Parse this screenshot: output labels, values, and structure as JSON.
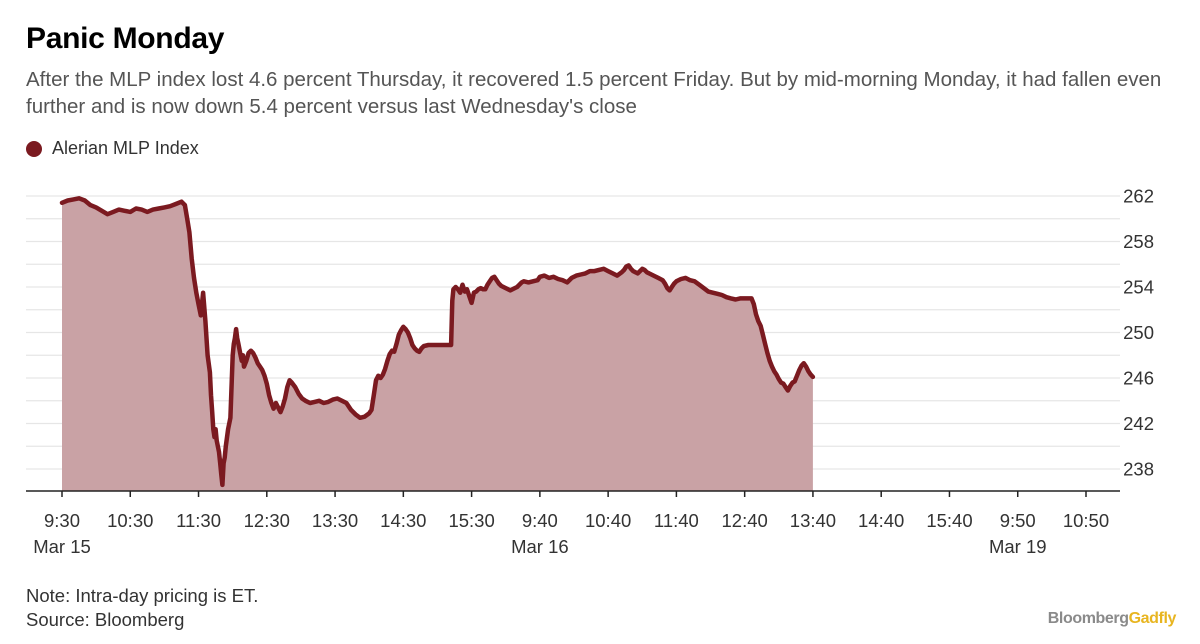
{
  "title": "Panic Monday",
  "subtitle": "After the MLP index lost 4.6 percent Thursday, it recovered 1.5 percent Friday. But by mid-morning Monday, it had fallen even further and is now down 5.4 percent versus last Wednesday's close",
  "note": "Note: Intra-day pricing is ET.",
  "source": "Source: Bloomberg",
  "brand": {
    "part1": "Bloomberg",
    "part2": "Gadfly"
  },
  "chart_data": {
    "type": "area",
    "legend": [
      {
        "name": "Alerian MLP Index",
        "color": "#7b1a20"
      }
    ],
    "line_color": "#7b1a20",
    "fill_color": "#c9a2a5",
    "ylim": [
      236,
      263
    ],
    "yticks": [
      238,
      242,
      246,
      250,
      254,
      258,
      262
    ],
    "y_axis_side": "right",
    "grid": true,
    "xticks": [
      {
        "label": "9:30",
        "date": "Mar 15",
        "t": 0
      },
      {
        "label": "10:30",
        "t": 60
      },
      {
        "label": "11:30",
        "t": 120
      },
      {
        "label": "12:30",
        "t": 180
      },
      {
        "label": "13:30",
        "t": 240
      },
      {
        "label": "14:30",
        "t": 300
      },
      {
        "label": "15:30",
        "t": 360
      },
      {
        "label": "9:40",
        "date": "Mar 16",
        "t": 420
      },
      {
        "label": "10:40",
        "t": 480
      },
      {
        "label": "11:40",
        "t": 540
      },
      {
        "label": "12:40",
        "t": 600
      },
      {
        "label": "13:40",
        "t": 660
      },
      {
        "label": "14:40",
        "t": 720
      },
      {
        "label": "15:40",
        "t": 780
      },
      {
        "label": "9:50",
        "date": "Mar 19",
        "t": 840
      },
      {
        "label": "10:50",
        "t": 900
      }
    ],
    "series": [
      {
        "name": "Alerian MLP Index",
        "points": [
          [
            0,
            261.4
          ],
          [
            5,
            261.6
          ],
          [
            10,
            261.7
          ],
          [
            15,
            261.8
          ],
          [
            20,
            261.6
          ],
          [
            25,
            261.2
          ],
          [
            30,
            261.0
          ],
          [
            35,
            260.7
          ],
          [
            40,
            260.4
          ],
          [
            45,
            260.6
          ],
          [
            50,
            260.8
          ],
          [
            55,
            260.7
          ],
          [
            60,
            260.6
          ],
          [
            65,
            260.9
          ],
          [
            70,
            260.8
          ],
          [
            75,
            260.6
          ],
          [
            80,
            260.8
          ],
          [
            85,
            260.9
          ],
          [
            90,
            261.0
          ],
          [
            95,
            261.1
          ],
          [
            100,
            261.3
          ],
          [
            105,
            261.5
          ],
          [
            108,
            261.2
          ],
          [
            110,
            260.0
          ],
          [
            112,
            258.8
          ],
          [
            114,
            256.5
          ],
          [
            116,
            254.8
          ],
          [
            118,
            253.5
          ],
          [
            120,
            252.5
          ],
          [
            122,
            251.5
          ],
          [
            124,
            253.5
          ],
          [
            126,
            251.0
          ],
          [
            128,
            248.0
          ],
          [
            130,
            246.5
          ],
          [
            131,
            244.5
          ],
          [
            132,
            243.0
          ],
          [
            133,
            241.5
          ],
          [
            134,
            240.8
          ],
          [
            135,
            241.5
          ],
          [
            136,
            240.5
          ],
          [
            138,
            239.5
          ],
          [
            139,
            238.5
          ],
          [
            140,
            237.5
          ],
          [
            141,
            236.6
          ],
          [
            142,
            238.5
          ],
          [
            143,
            239.0
          ],
          [
            144,
            240.0
          ],
          [
            146,
            241.5
          ],
          [
            148,
            242.5
          ],
          [
            150,
            248.0
          ],
          [
            151,
            249.0
          ],
          [
            152,
            249.5
          ],
          [
            153,
            250.3
          ],
          [
            154,
            249.5
          ],
          [
            155,
            249.0
          ],
          [
            156,
            248.5
          ],
          [
            157,
            248.0
          ],
          [
            158,
            247.5
          ],
          [
            159,
            248.0
          ],
          [
            160,
            247.0
          ],
          [
            162,
            247.5
          ],
          [
            164,
            248.2
          ],
          [
            166,
            248.4
          ],
          [
            168,
            248.2
          ],
          [
            170,
            247.8
          ],
          [
            172,
            247.3
          ],
          [
            174,
            247.0
          ],
          [
            176,
            246.7
          ],
          [
            178,
            246.2
          ],
          [
            180,
            245.5
          ],
          [
            182,
            244.5
          ],
          [
            184,
            243.8
          ],
          [
            186,
            243.3
          ],
          [
            188,
            243.8
          ],
          [
            190,
            243.4
          ],
          [
            192,
            243.0
          ],
          [
            194,
            243.5
          ],
          [
            196,
            244.2
          ],
          [
            198,
            245.2
          ],
          [
            200,
            245.8
          ],
          [
            202,
            245.6
          ],
          [
            205,
            245.2
          ],
          [
            208,
            244.6
          ],
          [
            211,
            244.2
          ],
          [
            214,
            244.0
          ],
          [
            218,
            243.8
          ],
          [
            222,
            243.9
          ],
          [
            226,
            244.0
          ],
          [
            230,
            243.8
          ],
          [
            234,
            243.9
          ],
          [
            238,
            244.1
          ],
          [
            242,
            244.2
          ],
          [
            246,
            244.0
          ],
          [
            250,
            243.8
          ],
          [
            254,
            243.2
          ],
          [
            258,
            242.8
          ],
          [
            262,
            242.5
          ],
          [
            266,
            242.6
          ],
          [
            270,
            242.9
          ],
          [
            272,
            243.2
          ],
          [
            274,
            244.5
          ],
          [
            276,
            245.8
          ],
          [
            278,
            246.2
          ],
          [
            280,
            246.0
          ],
          [
            282,
            246.3
          ],
          [
            284,
            246.8
          ],
          [
            286,
            247.5
          ],
          [
            288,
            248.1
          ],
          [
            290,
            248.4
          ],
          [
            292,
            248.3
          ],
          [
            294,
            249.0
          ],
          [
            296,
            249.8
          ],
          [
            298,
            250.2
          ],
          [
            300,
            250.5
          ],
          [
            302,
            250.3
          ],
          [
            304,
            250.0
          ],
          [
            306,
            249.5
          ],
          [
            308,
            248.9
          ],
          [
            310,
            248.6
          ],
          [
            312,
            248.4
          ],
          [
            314,
            248.3
          ],
          [
            316,
            248.6
          ],
          [
            318,
            248.8
          ],
          [
            322,
            248.9
          ],
          [
            330,
            248.9
          ],
          [
            335,
            248.9
          ],
          [
            342,
            248.9
          ],
          [
            343,
            252.8
          ],
          [
            344,
            253.8
          ],
          [
            346,
            254.0
          ],
          [
            348,
            253.8
          ],
          [
            350,
            253.5
          ],
          [
            352,
            254.2
          ],
          [
            354,
            253.6
          ],
          [
            356,
            253.8
          ],
          [
            358,
            253.2
          ],
          [
            360,
            252.6
          ],
          [
            362,
            253.5
          ],
          [
            364,
            253.6
          ],
          [
            366,
            253.8
          ],
          [
            368,
            253.9
          ],
          [
            370,
            253.8
          ],
          [
            372,
            253.8
          ],
          [
            374,
            254.2
          ],
          [
            376,
            254.5
          ],
          [
            378,
            254.8
          ],
          [
            380,
            254.9
          ],
          [
            382,
            254.6
          ],
          [
            384,
            254.3
          ],
          [
            386,
            254.1
          ],
          [
            390,
            253.9
          ],
          [
            394,
            253.7
          ],
          [
            398,
            253.9
          ],
          [
            400,
            254.0
          ],
          [
            402,
            254.2
          ],
          [
            404,
            254.4
          ],
          [
            406,
            254.5
          ],
          [
            410,
            254.4
          ],
          [
            414,
            254.5
          ],
          [
            418,
            254.6
          ],
          [
            420,
            254.9
          ],
          [
            424,
            255.0
          ],
          [
            428,
            254.8
          ],
          [
            432,
            254.9
          ],
          [
            436,
            254.7
          ],
          [
            440,
            254.6
          ],
          [
            444,
            254.4
          ],
          [
            448,
            254.8
          ],
          [
            452,
            255.0
          ],
          [
            456,
            255.1
          ],
          [
            460,
            255.2
          ],
          [
            464,
            255.4
          ],
          [
            468,
            255.4
          ],
          [
            472,
            255.5
          ],
          [
            476,
            255.6
          ],
          [
            480,
            255.4
          ],
          [
            484,
            255.2
          ],
          [
            488,
            255.0
          ],
          [
            492,
            255.3
          ],
          [
            494,
            255.5
          ],
          [
            496,
            255.8
          ],
          [
            498,
            255.9
          ],
          [
            500,
            255.6
          ],
          [
            502,
            255.4
          ],
          [
            504,
            255.3
          ],
          [
            506,
            255.2
          ],
          [
            508,
            255.4
          ],
          [
            510,
            255.6
          ],
          [
            512,
            255.5
          ],
          [
            514,
            255.3
          ],
          [
            516,
            255.2
          ],
          [
            520,
            255.0
          ],
          [
            524,
            254.8
          ],
          [
            528,
            254.6
          ],
          [
            530,
            254.3
          ],
          [
            532,
            253.9
          ],
          [
            534,
            253.7
          ],
          [
            536,
            254.0
          ],
          [
            538,
            254.3
          ],
          [
            540,
            254.5
          ],
          [
            544,
            254.7
          ],
          [
            548,
            254.8
          ],
          [
            552,
            254.6
          ],
          [
            556,
            254.5
          ],
          [
            560,
            254.2
          ],
          [
            564,
            253.9
          ],
          [
            568,
            253.6
          ],
          [
            572,
            253.5
          ],
          [
            576,
            253.4
          ],
          [
            580,
            253.3
          ],
          [
            584,
            253.1
          ],
          [
            588,
            253.0
          ],
          [
            592,
            252.9
          ],
          [
            596,
            253.0
          ],
          [
            600,
            253.0
          ],
          [
            604,
            253.0
          ],
          [
            606,
            253.0
          ],
          [
            608,
            252.5
          ],
          [
            610,
            251.6
          ],
          [
            612,
            251.0
          ],
          [
            614,
            250.6
          ],
          [
            616,
            249.8
          ],
          [
            618,
            249.0
          ],
          [
            620,
            248.2
          ],
          [
            622,
            247.5
          ],
          [
            624,
            247.0
          ],
          [
            626,
            246.6
          ],
          [
            628,
            246.3
          ],
          [
            630,
            245.9
          ],
          [
            632,
            245.6
          ],
          [
            634,
            245.5
          ],
          [
            636,
            245.2
          ],
          [
            638,
            244.9
          ],
          [
            640,
            245.3
          ],
          [
            642,
            245.6
          ],
          [
            644,
            245.7
          ],
          [
            646,
            246.2
          ],
          [
            648,
            246.7
          ],
          [
            650,
            247.1
          ],
          [
            652,
            247.3
          ],
          [
            654,
            247.0
          ],
          [
            656,
            246.6
          ],
          [
            658,
            246.3
          ],
          [
            660,
            246.1
          ]
        ]
      }
    ]
  }
}
